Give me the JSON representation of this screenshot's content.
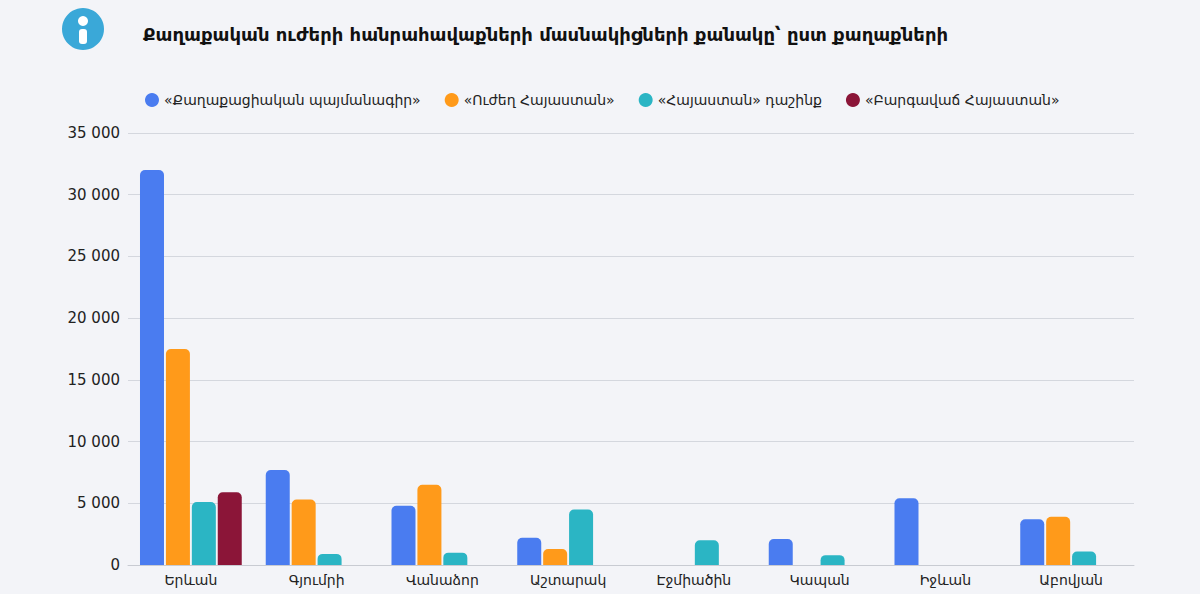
{
  "chart_data": {
    "type": "bar",
    "title": "Քաղաքական ուժերի հանրահավաքների մասնակիցների քանակը՝ ըստ քաղաքների",
    "categories": [
      "Երևան",
      "Գյումրի",
      "Վանաձոր",
      "Աշտարակ",
      "Էջմիածին",
      "Կապան",
      "Իջևան",
      "Աբովյան"
    ],
    "series": [
      {
        "name": "«Քաղաքացիական պայմանագիր»",
        "color": "#4a7cf0",
        "values": [
          32000,
          7700,
          4800,
          2200,
          null,
          2100,
          5400,
          3700
        ]
      },
      {
        "name": "«Ուժեղ Հայաստան»",
        "color": "#ff9a1a",
        "values": [
          17500,
          5300,
          6500,
          1300,
          null,
          null,
          null,
          3900
        ]
      },
      {
        "name": "«Հայաստան» դաշինք",
        "color": "#2bb5c4",
        "values": [
          5100,
          900,
          1000,
          4500,
          2000,
          800,
          null,
          1100
        ]
      },
      {
        "name": "«Բարգավաճ Հայաստան»",
        "color": "#8b1538",
        "values": [
          5900,
          null,
          null,
          null,
          null,
          null,
          null,
          null
        ]
      }
    ],
    "ylim": [
      0,
      35000
    ],
    "yticks": [
      0,
      {
        "value": 5000,
        "label": "5 000"
      },
      {
        "value": 10000,
        "label": "10 000"
      },
      {
        "value": 15000,
        "label": "15 000"
      },
      {
        "value": 20000,
        "label": "20 000"
      },
      {
        "value": 25000,
        "label": "25 000"
      },
      {
        "value": 30000,
        "label": "30 000"
      },
      {
        "value": 35000,
        "label": "35 000"
      }
    ],
    "grid": true,
    "legend": "top"
  }
}
